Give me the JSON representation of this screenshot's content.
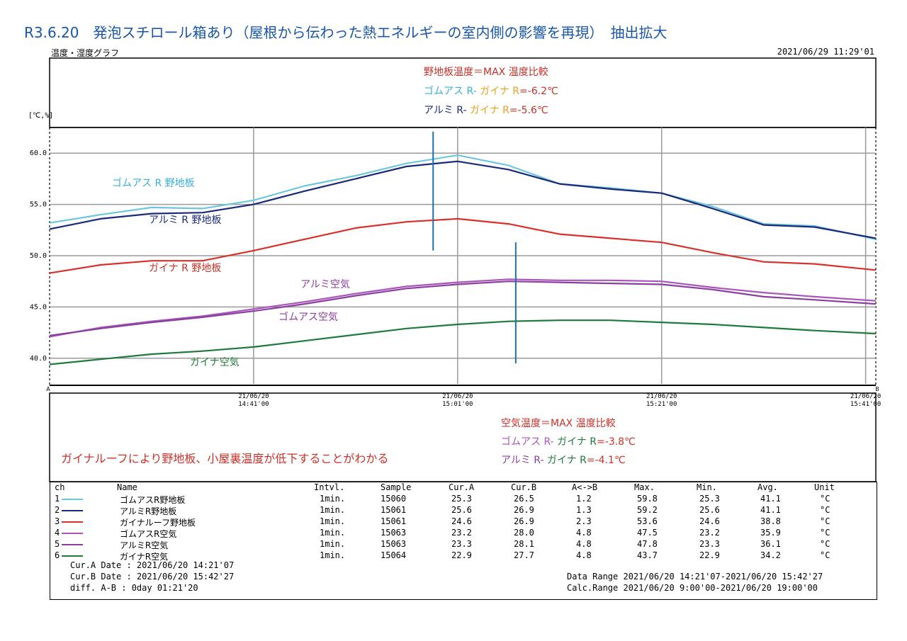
{
  "heading": "R3.6.20　発泡スチロール箱あり（屋根から伝わった熱エネルギーの室内側の影響を再現）　抽出拡大",
  "subtitle": "温度・湿度グラフ",
  "timestamp": "2021/06/29 11:29'01",
  "unit_label": "[℃,%]",
  "cursor_a_label": "A",
  "cursor_b_label": "B",
  "chart_data": {
    "type": "line",
    "ylim": [
      37.5,
      62.5
    ],
    "yticks": [
      40,
      45,
      50,
      55,
      60
    ],
    "ytick_labels": [
      "40.0",
      "45.0",
      "50.0",
      "55.0",
      "60.0"
    ],
    "xlim": [
      0,
      81
    ],
    "x_tick_positions": [
      20,
      40,
      60,
      80
    ],
    "x_ticks": [
      {
        "date": "21/06/20",
        "time": "14:41'00"
      },
      {
        "date": "21/06/20",
        "time": "15:01'00"
      },
      {
        "date": "21/06/20",
        "time": "15:21'00"
      },
      {
        "date": "21/06/20",
        "time": "15:41'00"
      }
    ],
    "x_minutes": [
      0,
      5,
      10,
      15,
      20,
      25,
      30,
      35,
      40,
      45,
      50,
      55,
      60,
      65,
      70,
      75,
      81
    ],
    "series": [
      {
        "name": "ゴムアスR野地板",
        "color": "#6ec6dc",
        "values": [
          53.2,
          54.0,
          54.7,
          54.6,
          55.4,
          56.8,
          57.8,
          59.0,
          59.8,
          58.8,
          57.0,
          56.6,
          56.1,
          54.8,
          53.1,
          52.9,
          51.6
        ]
      },
      {
        "name": "アルミR野地板",
        "color": "#1a2a78",
        "values": [
          52.6,
          53.6,
          54.1,
          54.2,
          55.0,
          56.3,
          57.5,
          58.7,
          59.2,
          58.4,
          57.0,
          56.5,
          56.1,
          54.6,
          53.0,
          52.8,
          51.7
        ]
      },
      {
        "name": "ガイナルーフ野地板",
        "color": "#d8302a",
        "values": [
          48.3,
          49.1,
          49.5,
          49.5,
          50.5,
          51.6,
          52.7,
          53.3,
          53.6,
          53.1,
          52.1,
          51.7,
          51.3,
          50.3,
          49.4,
          49.2,
          48.6
        ]
      },
      {
        "name": "ゴムアスR空気",
        "color": "#a855b8",
        "values": [
          42.1,
          43.0,
          43.6,
          44.1,
          44.8,
          45.5,
          46.3,
          47.0,
          47.4,
          47.7,
          47.6,
          47.6,
          47.5,
          46.9,
          46.4,
          46.0,
          45.6
        ]
      },
      {
        "name": "アルミR空気",
        "color": "#8a3f9e",
        "values": [
          42.2,
          42.9,
          43.5,
          44.0,
          44.6,
          45.3,
          46.1,
          46.8,
          47.2,
          47.5,
          47.4,
          47.3,
          47.2,
          46.7,
          46.0,
          45.7,
          45.3
        ]
      },
      {
        "name": "ガイナR空気",
        "color": "#1f7a3c",
        "values": [
          39.4,
          39.9,
          40.4,
          40.7,
          41.1,
          41.7,
          42.3,
          42.9,
          43.3,
          43.6,
          43.7,
          43.7,
          43.5,
          43.3,
          43.0,
          42.7,
          42.4
        ]
      }
    ],
    "series_labels": [
      "ゴムアス R 野地板",
      "アルミ R 野地板",
      "ガイナ R 野地板",
      "アルミ空気",
      "ゴムアス空気",
      "ガイナ空気"
    ],
    "markers": [
      {
        "x": 37.6,
        "y_top": 62.1,
        "y_bottom": 50.5,
        "color": "#1f6fa8"
      },
      {
        "x": 45.7,
        "y_top": 51.3,
        "y_bottom": 39.5,
        "color": "#1f6fa8"
      }
    ]
  },
  "annotations": {
    "roof_title": "野地板温度＝MAX 温度比較",
    "roof_line1_a": "ゴムアス R-",
    "roof_line1_b": " ガイナ R",
    "roof_line1_c": "=-6.2℃",
    "roof_line2_a": "アルミ R-",
    "roof_line2_b": " ガイナ R",
    "roof_line2_c": "=-5.6℃",
    "air_title": "空気温度＝MAX 温度比較",
    "air_line1_a": "ゴムアス R-",
    "air_line1_b": " ガイナ R",
    "air_line1_c": "=-3.8℃",
    "air_line2_a": "アルミ R-",
    "air_line2_b": " ガイナ R",
    "air_line2_c": "=-4.1℃",
    "conclusion": "ガイナルーフにより野地板、小屋裏温度が低下することがわかる"
  },
  "colors": {
    "heading": "#1a56a8",
    "red_text": "#c8302a",
    "orange_text": "#e8a020",
    "green_text": "#1f7a3c",
    "marker": "#1f6fa8"
  },
  "table": {
    "headers": {
      "ch": "ch",
      "name": "Name",
      "intvl": "Intvl.",
      "sample": "Sample",
      "cur_a": "Cur.A",
      "cur_b": "Cur.B",
      "ab": "A<->B",
      "max": "Max.",
      "min": "Min.",
      "avg": "Avg.",
      "unit": "Unit"
    },
    "rows": [
      {
        "ch": "1",
        "name": "ゴムアスR野地板",
        "intvl": "1min.",
        "sample": "15060",
        "cur_a": "25.3",
        "cur_b": "26.5",
        "ab": "1.2",
        "max": "59.8",
        "min": "25.3",
        "avg": "41.1",
        "unit": "°C",
        "color": "#6ec6dc"
      },
      {
        "ch": "2",
        "name": "アルミR野地板",
        "intvl": "1min.",
        "sample": "15061",
        "cur_a": "25.6",
        "cur_b": "26.9",
        "ab": "1.3",
        "max": "59.2",
        "min": "25.6",
        "avg": "41.1",
        "unit": "°C",
        "color": "#1a2a78"
      },
      {
        "ch": "3",
        "name": "ガイナルーフ野地板",
        "intvl": "1min.",
        "sample": "15061",
        "cur_a": "24.6",
        "cur_b": "26.9",
        "ab": "2.3",
        "max": "53.6",
        "min": "24.6",
        "avg": "38.8",
        "unit": "°C",
        "color": "#d8302a"
      },
      {
        "ch": "4",
        "name": "ゴムアスR空気",
        "intvl": "1min.",
        "sample": "15063",
        "cur_a": "23.2",
        "cur_b": "28.0",
        "ab": "4.8",
        "max": "47.5",
        "min": "23.2",
        "avg": "35.9",
        "unit": "°C",
        "color": "#a855b8"
      },
      {
        "ch": "5",
        "name": "アルミR空気",
        "intvl": "1min.",
        "sample": "15063",
        "cur_a": "23.3",
        "cur_b": "28.1",
        "ab": "4.8",
        "max": "47.8",
        "min": "23.3",
        "avg": "36.1",
        "unit": "°C",
        "color": "#8a3f9e"
      },
      {
        "ch": "6",
        "name": "ガイナR空気",
        "intvl": "1min.",
        "sample": "15064",
        "cur_a": "22.9",
        "cur_b": "27.7",
        "ab": "4.8",
        "max": "43.7",
        "min": "22.9",
        "avg": "34.2",
        "unit": "°C",
        "color": "#1f7a3c"
      }
    ]
  },
  "footer": {
    "cur_a": "Cur.A Date  : 2021/06/20 14:21'07",
    "cur_b": "Cur.B Date  : 2021/06/20 15:42'27",
    "diff": "diff. A-B   : 0day 01:21'20",
    "data_range": "Data Range 2021/06/20 14:21'07-2021/06/20 15:42'27",
    "calc_range": "Calc.Range 2021/06/20  9:00'00-2021/06/20 19:00'00"
  }
}
